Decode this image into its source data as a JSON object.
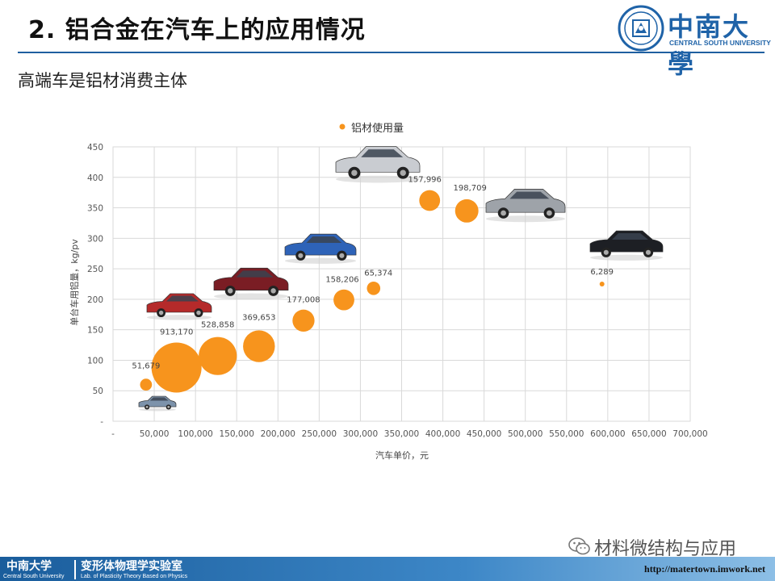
{
  "header": {
    "title": "2. 铝合金在汽车上的应用情况",
    "logo_cn": "中南大學",
    "logo_en": "CENTRAL SOUTH UNIVERSITY"
  },
  "subtitle": "高端车是铝材消费主体",
  "chart_data": {
    "type": "bubble",
    "legend": {
      "label": "铝材使用量",
      "position": "top"
    },
    "xlabel": "汽车单价，元",
    "ylabel": "单台车用铝量，kg/pv",
    "xlim": [
      0,
      700000
    ],
    "ylim": [
      0,
      450
    ],
    "x_ticks": [
      "-",
      "50,000",
      "100,000",
      "150,000",
      "200,000",
      "250,000",
      "300,000",
      "350,000",
      "400,000",
      "450,000",
      "500,000",
      "550,000",
      "600,000",
      "650,000",
      "700,000"
    ],
    "y_ticks": [
      "-",
      "50",
      "100",
      "150",
      "200",
      "250",
      "300",
      "350",
      "400",
      "450"
    ],
    "grid": true,
    "color": "#F7941D",
    "points": [
      {
        "x": 40000,
        "y": 60,
        "size": 51679,
        "label": "51,679"
      },
      {
        "x": 77000,
        "y": 88,
        "size": 913170,
        "label": "913,170"
      },
      {
        "x": 127000,
        "y": 107,
        "size": 528858,
        "label": "528,858"
      },
      {
        "x": 177000,
        "y": 123,
        "size": 369653,
        "label": "369,653"
      },
      {
        "x": 231000,
        "y": 165,
        "size": 177008,
        "label": "177,008"
      },
      {
        "x": 280000,
        "y": 199,
        "size": 158206,
        "label": "158,206"
      },
      {
        "x": 316000,
        "y": 218,
        "size": 65374,
        "label": "65,374"
      },
      {
        "x": 384000,
        "y": 362,
        "size": 157996,
        "label": "157,996"
      },
      {
        "x": 429000,
        "y": 345,
        "size": 198709,
        "label": "198,709"
      },
      {
        "x": 593000,
        "y": 225,
        "size": 6289,
        "label": "6,289"
      }
    ]
  },
  "watermark": "材料微结构与应用",
  "footer": {
    "university_cn": "中南大学",
    "university_en": "Central South University",
    "lab_cn": "变形体物理学实验室",
    "lab_en": "Lab. of Plasticity Theory Based on Physics",
    "url": "http://matertown.imwork.net"
  }
}
